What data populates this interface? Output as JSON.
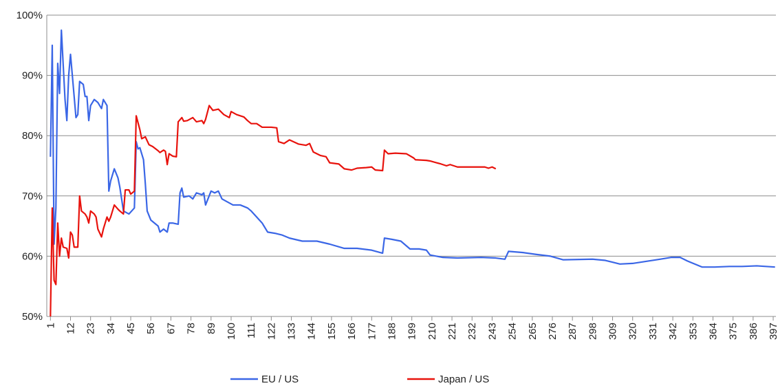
{
  "chart_data": {
    "type": "line",
    "xlim": [
      -1,
      398.5
    ],
    "xticks": [
      1,
      12,
      23,
      34,
      45,
      56,
      67,
      78,
      89,
      100,
      111,
      122,
      133,
      144,
      155,
      166,
      177,
      188,
      199,
      210,
      221,
      232,
      243,
      254,
      265,
      276,
      287,
      298,
      309,
      320,
      331,
      342,
      353,
      364,
      375,
      386,
      397
    ],
    "ylim": [
      50,
      100
    ],
    "yticks": [
      {
        "value": 50,
        "label": "50%"
      },
      {
        "value": 60,
        "label": "60%"
      },
      {
        "value": 70,
        "label": "70%"
      },
      {
        "value": 80,
        "label": "80%"
      },
      {
        "value": 90,
        "label": "90%"
      },
      {
        "value": 100,
        "label": "100%"
      }
    ],
    "grid": true,
    "legend": "bottom",
    "series": [
      {
        "name": "EU / US",
        "color": "#3a66e6",
        "x": [
          1,
          2,
          3,
          4,
          5,
          6,
          7,
          9,
          10,
          11,
          12,
          13,
          15,
          16,
          17,
          19,
          20,
          21,
          22,
          23,
          25,
          27,
          29,
          30,
          32,
          33,
          34,
          36,
          38,
          39,
          41,
          44,
          47,
          48,
          49,
          50,
          52,
          53,
          54,
          56,
          58,
          60,
          61,
          63,
          65,
          66,
          68,
          71,
          72,
          73,
          74,
          77,
          79,
          81,
          84,
          85,
          86,
          89,
          91,
          93,
          95,
          98,
          101,
          105,
          109,
          111,
          114,
          117,
          120,
          124,
          128,
          132,
          139,
          147,
          154,
          162,
          169,
          177,
          183,
          184,
          188,
          193,
          198,
          203,
          207,
          209,
          216,
          224,
          237,
          245,
          250,
          252,
          260,
          267,
          275,
          282,
          298,
          305,
          313,
          320,
          335,
          341,
          346,
          350,
          358,
          365,
          373,
          380,
          388,
          398
        ],
        "values": [
          76.5,
          95,
          62,
          68,
          92,
          87,
          97.5,
          86,
          82.5,
          90,
          93.5,
          90,
          83,
          83.5,
          89,
          88.5,
          86.5,
          86.5,
          82.5,
          85,
          86,
          85.5,
          84.5,
          86,
          85,
          70.8,
          72.5,
          74.5,
          73,
          71.5,
          67.5,
          67,
          68,
          79,
          77.8,
          78,
          76,
          72,
          67.5,
          66,
          65.5,
          65,
          64,
          64.5,
          64,
          65.5,
          65.5,
          65.3,
          70.5,
          71.3,
          69.8,
          70,
          69.5,
          70.5,
          70.2,
          70.5,
          68.5,
          70.8,
          70.5,
          70.8,
          69.5,
          69,
          68.5,
          68.5,
          68,
          67.5,
          66.5,
          65.5,
          64,
          63.8,
          63.5,
          63,
          62.5,
          62.5,
          62,
          61.3,
          61.3,
          61,
          60.5,
          63,
          62.8,
          62.5,
          61.2,
          61.2,
          61,
          60.2,
          59.8,
          59.7,
          59.8,
          59.7,
          59.5,
          60.8,
          60.6,
          60.3,
          60,
          59.4,
          59.5,
          59.3,
          58.7,
          58.8,
          59.5,
          59.8,
          59.8,
          59.2,
          58.2,
          58.2,
          58.3,
          58.3,
          58.4,
          58.2
        ]
      },
      {
        "name": "Japan / US",
        "color": "#e8120c",
        "x": [
          1,
          2,
          3,
          4,
          5,
          6,
          7,
          8,
          10,
          11,
          12,
          13,
          14,
          16,
          17,
          18,
          20,
          21,
          22,
          23,
          25,
          26,
          27,
          29,
          30,
          31,
          32,
          33,
          34,
          35,
          36,
          38,
          39,
          41,
          42,
          44,
          45,
          47,
          48,
          50,
          51,
          53,
          55,
          57,
          60,
          61,
          63,
          64,
          65,
          66,
          68,
          70,
          71,
          73,
          74,
          76,
          79,
          81,
          84,
          85,
          86,
          88,
          90,
          93,
          96,
          99,
          100,
          103,
          107,
          109,
          111,
          114,
          117,
          122,
          125,
          126,
          129,
          132,
          137,
          141,
          143,
          145,
          149,
          152,
          154,
          159,
          162,
          166,
          169,
          174,
          177,
          179,
          183,
          184,
          186,
          190,
          196,
          200,
          201,
          207,
          209,
          215,
          218,
          220,
          224,
          239,
          241,
          243,
          245
        ],
        "values": [
          50,
          68,
          56,
          55.3,
          65.5,
          60,
          63,
          61.5,
          61.3,
          59.7,
          64,
          63.5,
          61.5,
          61.5,
          70,
          67.5,
          67,
          66.5,
          65.5,
          67.5,
          67,
          66.5,
          64.5,
          63.2,
          64.5,
          65.5,
          66.5,
          65.8,
          66.5,
          67.5,
          68.5,
          67.8,
          67.5,
          67,
          71,
          71,
          70.3,
          70.8,
          83.3,
          81,
          79.5,
          79.8,
          78.5,
          78.2,
          77.5,
          77.2,
          77.6,
          77.4,
          75.2,
          77,
          76.6,
          76.5,
          82.3,
          83,
          82.4,
          82.5,
          83,
          82.3,
          82.5,
          82,
          82.7,
          85,
          84.2,
          84.4,
          83.5,
          83,
          84,
          83.5,
          83.1,
          82.5,
          82,
          82,
          81.4,
          81.4,
          81.3,
          79,
          78.7,
          79.3,
          78.6,
          78.4,
          78.7,
          77.3,
          76.7,
          76.5,
          75.5,
          75.3,
          74.5,
          74.3,
          74.6,
          74.7,
          74.8,
          74.3,
          74.2,
          77.6,
          77,
          77.1,
          77,
          76.3,
          76,
          75.9,
          75.8,
          75.3,
          75,
          75.2,
          74.8,
          74.8,
          74.6,
          74.8,
          74.5
        ]
      }
    ]
  }
}
